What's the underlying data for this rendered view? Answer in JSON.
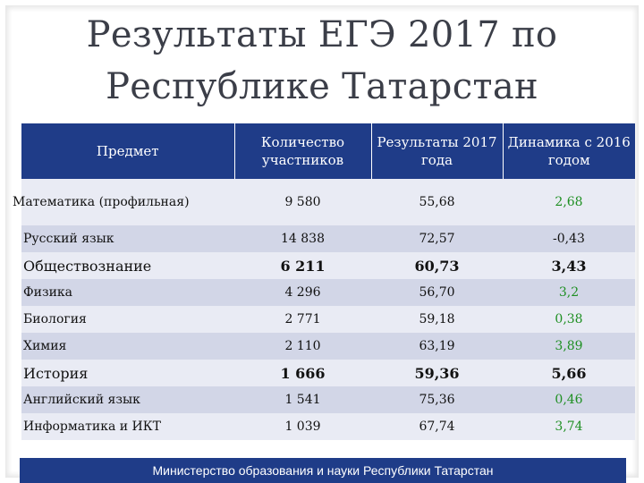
{
  "title": {
    "line1": "Результаты ЕГЭ 2017 по",
    "line2": "Республике Татарстан"
  },
  "table": {
    "headers": [
      "Предмет",
      "Количество участников",
      "Результаты 2017 года",
      "Динамика с 2016 годом"
    ],
    "rows": [
      {
        "subject": "Математика (профильная)",
        "count": "9 580",
        "result": "55,68",
        "dynamics": "2,68"
      },
      {
        "subject": "Русский язык",
        "count": "14 838",
        "result": "72,57",
        "dynamics": "-0,43"
      },
      {
        "subject": "Обществознание",
        "count": "6 211",
        "result": "60,73",
        "dynamics": "3,43"
      },
      {
        "subject": "Физика",
        "count": "4 296",
        "result": "56,70",
        "dynamics": "3,2"
      },
      {
        "subject": "Биология",
        "count": "2 771",
        "result": "59,18",
        "dynamics": "0,38"
      },
      {
        "subject": "Химия",
        "count": "2 110",
        "result": "63,19",
        "dynamics": "3,89"
      },
      {
        "subject": "История",
        "count": "1 666",
        "result": "59,36",
        "dynamics": "5,66"
      },
      {
        "subject": "Английский язык",
        "count": "1 541",
        "result": "75,36",
        "dynamics": "0,46"
      },
      {
        "subject": "Информатика и ИКТ",
        "count": "1 039",
        "result": "67,74",
        "dynamics": "3,74"
      }
    ]
  },
  "colors": {
    "header_bg": "#1f3c88",
    "positive_dynamics": "#1e8f22",
    "negative_dynamics": "#111111"
  },
  "footer": "Министерство образования и науки Республики Татарстан"
}
